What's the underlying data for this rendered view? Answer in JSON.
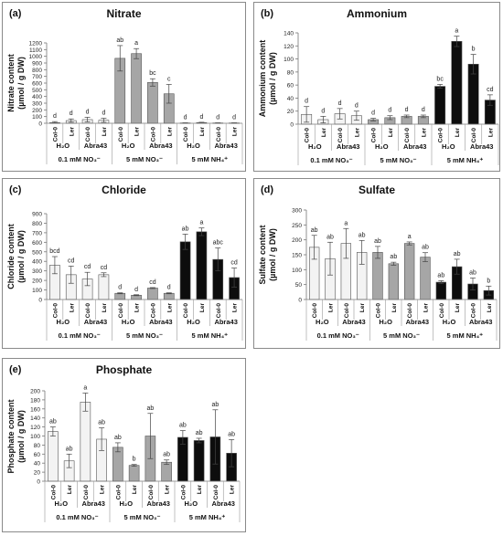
{
  "chart_data": [
    {
      "type": "bar",
      "tag": "(a)",
      "title": "Nitrate",
      "ylabel_line1": "Nitrate content",
      "ylabel_line2": "(µmol / g DW)",
      "ylim": [
        0,
        1200
      ],
      "yticks": [
        0,
        100,
        200,
        300,
        400,
        500,
        600,
        700,
        800,
        900,
        1000,
        1100,
        1200
      ],
      "genotype_labels": [
        "Col-0",
        "Ler",
        "Col-0",
        "Ler",
        "Col-0",
        "Ler",
        "Col-0",
        "Ler",
        "Col-0",
        "Ler",
        "Col-0",
        "Ler"
      ],
      "treatment_labels": [
        "H₂O",
        "Abra43",
        "H₂O",
        "Abra43",
        "H₂O",
        "Abra43"
      ],
      "condition_labels": [
        "0.1 mM NO₃⁻",
        "5 mM NO₃⁻",
        "5 mM NH₄⁺"
      ],
      "values": [
        10,
        40,
        55,
        45,
        970,
        1040,
        610,
        440,
        5,
        10,
        5,
        5
      ],
      "errors": [
        15,
        25,
        35,
        30,
        190,
        75,
        55,
        140,
        3,
        5,
        3,
        3
      ],
      "letters": [
        "d",
        "d",
        "d",
        "d",
        "ab",
        "a",
        "bc",
        "c",
        "d",
        "d",
        "d",
        "d"
      ]
    },
    {
      "type": "bar",
      "tag": "(b)",
      "title": "Ammonium",
      "ylabel_line1": "Ammonium content",
      "ylabel_line2": "(µmol / g DW)",
      "ylim": [
        0,
        140
      ],
      "yticks": [
        0,
        20,
        40,
        60,
        80,
        100,
        120,
        140
      ],
      "genotype_labels": [
        "Col-0",
        "Ler",
        "Col-0",
        "Ler",
        "Col-0",
        "Ler",
        "Col-0",
        "Ler",
        "Col-0",
        "Ler",
        "Col-0",
        "Ler"
      ],
      "treatment_labels": [
        "H₂O",
        "Abra43",
        "H₂O",
        "Abra43",
        "H₂O",
        "Abra43"
      ],
      "condition_labels": [
        "0.1 mM NO₃⁻",
        "5 mM NO₃⁻",
        "5 mM NH₄⁺"
      ],
      "values": [
        15,
        7,
        16,
        13,
        7,
        10,
        12,
        12,
        58,
        127,
        92,
        37
      ],
      "errors": [
        12,
        5,
        8,
        7,
        2,
        3,
        2,
        2,
        3,
        8,
        15,
        8
      ],
      "letters": [
        "d",
        "d",
        "d",
        "d",
        "d",
        "d",
        "d",
        "d",
        "bc",
        "a",
        "b",
        "cd"
      ]
    },
    {
      "type": "bar",
      "tag": "(c)",
      "title": "Chloride",
      "ylabel_line1": "Chloride content",
      "ylabel_line2": "(µmol / g DW)",
      "ylim": [
        0,
        900
      ],
      "yticks": [
        0,
        100,
        200,
        300,
        400,
        500,
        600,
        700,
        800,
        900
      ],
      "genotype_labels": [
        "Col-0",
        "Ler",
        "Col-0",
        "Ler",
        "Col-0",
        "Ler",
        "Col-0",
        "Ler",
        "Col-0",
        "Ler",
        "Col-0",
        "Ler"
      ],
      "treatment_labels": [
        "H₂O",
        "Abra43",
        "H₂O",
        "Abra43",
        "H₂O",
        "Abra43"
      ],
      "condition_labels": [
        "0.1 mM NO₃⁻",
        "5 mM NO₃⁻",
        "5 mM NH₄⁺"
      ],
      "values": [
        360,
        260,
        215,
        260,
        65,
        45,
        120,
        65,
        605,
        710,
        420,
        230
      ],
      "errors": [
        90,
        90,
        70,
        20,
        5,
        5,
        5,
        5,
        80,
        40,
        120,
        100
      ],
      "letters": [
        "bcd",
        "cd",
        "cd",
        "cd",
        "d",
        "d",
        "cd",
        "d",
        "ab",
        "a",
        "abc",
        "cd"
      ]
    },
    {
      "type": "bar",
      "tag": "(d)",
      "title": "Sulfate",
      "ylabel_line1": "Sulfate content",
      "ylabel_line2": "(µmol / g DW)",
      "ylim": [
        0,
        300
      ],
      "yticks": [
        0,
        50,
        100,
        150,
        200,
        250,
        300
      ],
      "genotype_labels": [
        "Col-0",
        "Ler",
        "Col-0",
        "Ler",
        "Col-0",
        "Ler",
        "Col-0",
        "Ler",
        "Col-0",
        "Ler",
        "Col-0",
        "Ler"
      ],
      "treatment_labels": [
        "H₂O",
        "Abra43",
        "H₂O",
        "Abra43",
        "H₂O",
        "Abra43"
      ],
      "condition_labels": [
        "0.1 mM NO₃⁻",
        "5 mM NO₃⁻",
        "5 mM NH₄⁺"
      ],
      "values": [
        175,
        137,
        188,
        158,
        158,
        120,
        188,
        142,
        58,
        110,
        52,
        30
      ],
      "errors": [
        40,
        55,
        50,
        40,
        20,
        5,
        5,
        15,
        5,
        25,
        20,
        15
      ],
      "letters": [
        "ab",
        "ab",
        "a",
        "ab",
        "ab",
        "ab",
        "a",
        "ab",
        "ab",
        "ab",
        "ab",
        "b"
      ]
    },
    {
      "type": "bar",
      "tag": "(e)",
      "title": "Phosphate",
      "ylabel_line1": "Phosphate content",
      "ylabel_line2": "(µmol / g DW)",
      "ylim": [
        0,
        200
      ],
      "yticks": [
        0,
        20,
        40,
        60,
        80,
        100,
        120,
        140,
        160,
        180,
        200
      ],
      "genotype_labels": [
        "Col-0",
        "Ler",
        "Col-0",
        "Ler",
        "Col-0",
        "Ler",
        "Col-0",
        "Ler",
        "Col-0",
        "Ler",
        "Col-0",
        "Ler"
      ],
      "treatment_labels": [
        "H₂O",
        "Abra43",
        "H₂O",
        "Abra43",
        "H₂O",
        "Abra43"
      ],
      "condition_labels": [
        "0.1 mM NO₃⁻",
        "5 mM NO₃⁻",
        "5 mM NH₄⁺"
      ],
      "values": [
        110,
        45,
        175,
        93,
        75,
        35,
        100,
        42,
        97,
        90,
        98,
        62
      ],
      "errors": [
        10,
        15,
        20,
        25,
        10,
        2,
        50,
        5,
        15,
        5,
        60,
        30
      ],
      "letters": [
        "ab",
        "ab",
        "a",
        "ab",
        "ab",
        "b",
        "ab",
        "ab",
        "ab",
        "ab",
        "ab",
        "ab"
      ]
    }
  ],
  "colors": {
    "group_fill": [
      "#f3f3f3",
      "#a6a6a6",
      "#0d0d0d"
    ],
    "bar_stroke": "#555555",
    "frame": "#8a8a8a"
  }
}
